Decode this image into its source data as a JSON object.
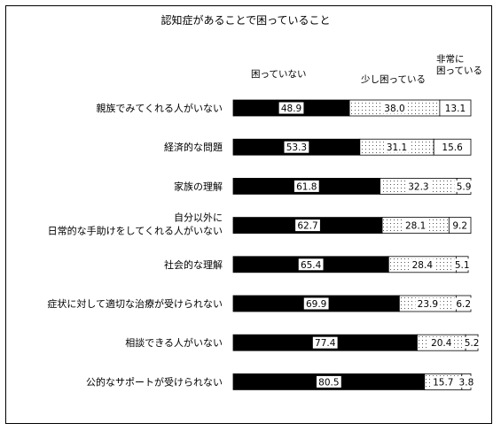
{
  "chart_data": {
    "type": "bar",
    "stacked": true,
    "orientation": "horizontal",
    "normalized_percent": true,
    "title": "認知症があることで困っていること",
    "categories": [
      "親族でみてくれる人がいない",
      "経済的な問題",
      "家族の理解",
      "自分以外に\n日常的な手助けをしてくれる人がいない",
      "社会的な理解",
      "症状に対して適切な治療が受けられない",
      "相談できる人がいない",
      "公的なサポートが受けられない"
    ],
    "series": [
      {
        "name": "困っていない",
        "values": [
          48.9,
          53.3,
          61.8,
          62.7,
          65.4,
          69.9,
          77.4,
          80.5
        ]
      },
      {
        "name": "少し困っている",
        "values": [
          38.0,
          31.1,
          32.3,
          28.1,
          28.4,
          23.9,
          20.4,
          15.7
        ]
      },
      {
        "name": "非常に困っている",
        "values": [
          13.1,
          15.6,
          5.9,
          9.2,
          5.1,
          6.2,
          5.2,
          3.8
        ]
      }
    ],
    "value_labels": [
      [
        "48.9",
        "38.0",
        "13.1"
      ],
      [
        "53.3",
        "31.1",
        "15.6"
      ],
      [
        "61.8",
        "32.3",
        "5.9"
      ],
      [
        "62.7",
        "28.1",
        "9.2"
      ],
      [
        "65.4",
        "28.4",
        "5.1"
      ],
      [
        "69.9",
        "23.9",
        "6.2"
      ],
      [
        "77.4",
        "20.4",
        "5.2"
      ],
      [
        "80.5",
        "15.7",
        "3.8"
      ]
    ],
    "colors": [
      "#000000",
      "dots",
      "#ffffff"
    ],
    "legend_position": "top",
    "xlim": [
      0,
      100
    ],
    "grid": false
  }
}
